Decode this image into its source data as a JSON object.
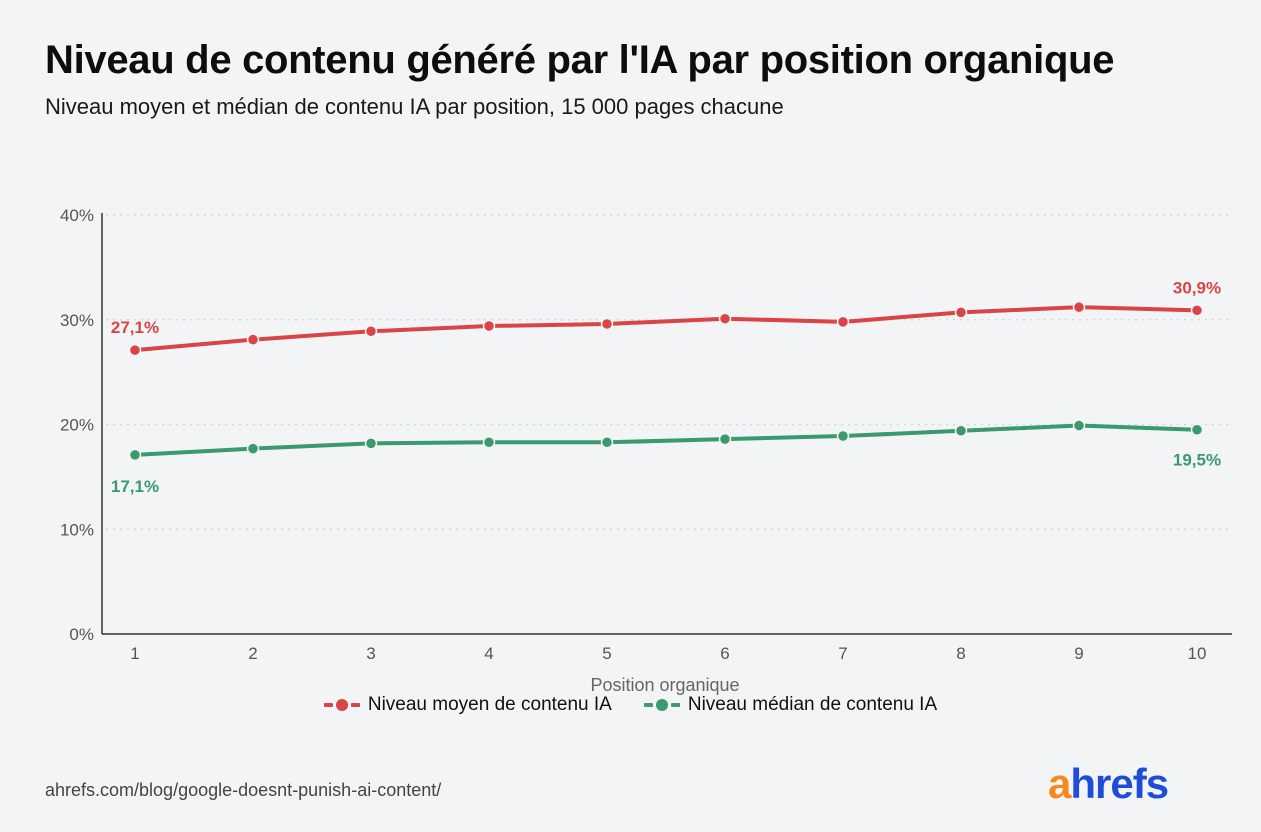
{
  "header": {
    "title": "Niveau de contenu généré par l'IA par position organique",
    "subtitle": "Niveau moyen et médian de contenu IA par position, 15 000 pages chacune"
  },
  "chart_data": {
    "type": "line",
    "x": [
      1,
      2,
      3,
      4,
      5,
      6,
      7,
      8,
      9,
      10
    ],
    "xlabel": "Position organique",
    "ylabel": "",
    "ylim": [
      0,
      40
    ],
    "yticks": [
      "0%",
      "10%",
      "20%",
      "30%",
      "40%"
    ],
    "grid": true,
    "legend_position": "bottom",
    "series": [
      {
        "name": "Niveau moyen de contenu IA",
        "color": "#d94545",
        "values": [
          27.1,
          28.1,
          28.9,
          29.4,
          29.6,
          30.1,
          29.8,
          30.7,
          31.2,
          30.9
        ],
        "labels": {
          "first": "27,1%",
          "last": "30,9%"
        }
      },
      {
        "name": "Niveau médian de contenu IA",
        "color": "#3a9a6e",
        "values": [
          17.1,
          17.7,
          18.2,
          18.3,
          18.3,
          18.6,
          18.9,
          19.4,
          19.9,
          19.5
        ],
        "labels": {
          "first": "17,1%",
          "last": "19,5%"
        }
      }
    ]
  },
  "footer": {
    "source": "ahrefs.com/blog/google-doesnt-punish-ai-content/",
    "logo_a": "a",
    "logo_rest": "hrefs"
  }
}
